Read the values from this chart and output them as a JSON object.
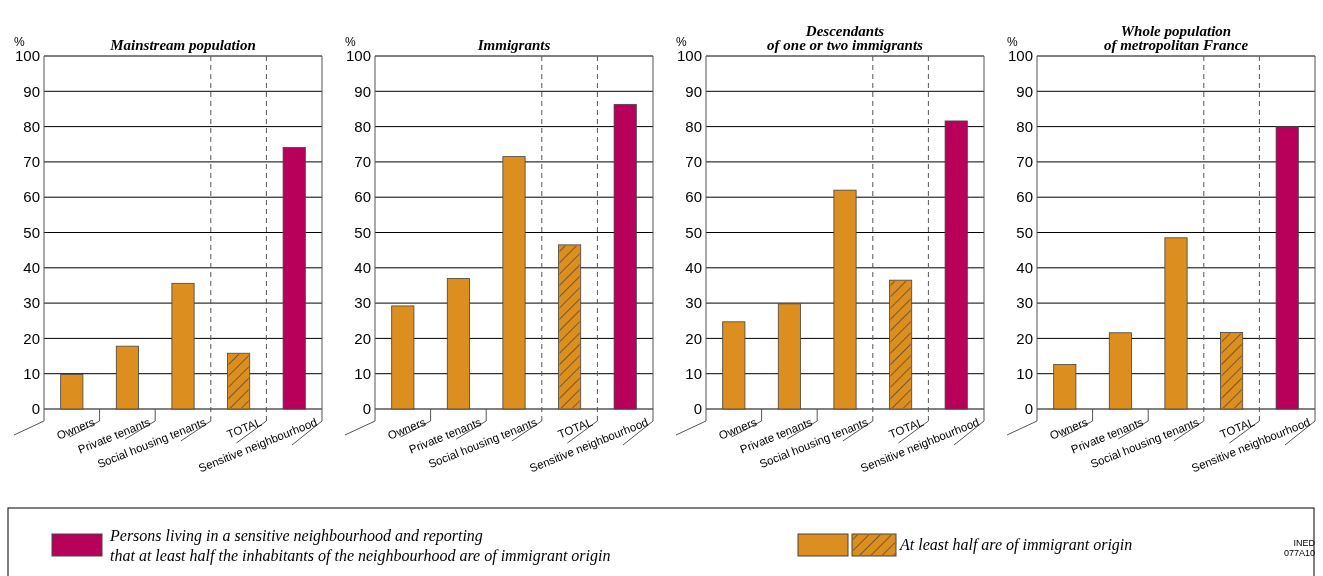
{
  "chart_data": [
    {
      "type": "bar",
      "title": "Mainstream population",
      "ylabel": "%",
      "categories": [
        "Owners",
        "Private tenants",
        "Social housing tenants",
        "TOTAL",
        "Sensitive neighbourhood"
      ],
      "series": [
        {
          "name": "At least half are of immigrant origin",
          "color": "#dc8e1e",
          "values": [
            9.8,
            17.8,
            35.6,
            15.8,
            null
          ]
        },
        {
          "name": "Persons living in a sensitive neighbourhood and reporting\nthat at least half the inhabitants of the neighbourhood are of immigrant origin",
          "color": "#b8005a",
          "values": [
            null,
            null,
            null,
            null,
            74.1
          ]
        }
      ],
      "ylim": [
        0,
        100
      ],
      "yticks": [
        0,
        10,
        20,
        30,
        40,
        50,
        60,
        70,
        80,
        90,
        100
      ],
      "grid": true,
      "legend": "bottom"
    },
    {
      "type": "bar",
      "title": "Immigrants",
      "ylabel": "%",
      "categories": [
        "Owners",
        "Private tenants",
        "Social housing tenants",
        "TOTAL",
        "Sensitive neighbourhood"
      ],
      "series": [
        {
          "color": "#dc8e1e",
          "values": [
            29.2,
            37,
            71.5,
            46.5,
            null
          ]
        },
        {
          "color": "#b8005a",
          "values": [
            null,
            null,
            null,
            null,
            86.3
          ]
        }
      ],
      "ylim": [
        0,
        100
      ],
      "yticks": [
        0,
        10,
        20,
        30,
        40,
        50,
        60,
        70,
        80,
        90,
        100
      ],
      "grid": true
    },
    {
      "type": "bar",
      "title": "Descendants\nof one or two immigrants",
      "ylabel": "%",
      "categories": [
        "Owners",
        "Private tenants",
        "Social housing tenants",
        "TOTAL",
        "Sensitive neighbourhood"
      ],
      "series": [
        {
          "color": "#dc8e1e",
          "values": [
            24.7,
            29.8,
            62,
            36.5,
            null
          ]
        },
        {
          "color": "#b8005a",
          "values": [
            null,
            null,
            null,
            null,
            81.6
          ]
        }
      ],
      "ylim": [
        0,
        100
      ],
      "yticks": [
        0,
        10,
        20,
        30,
        40,
        50,
        60,
        70,
        80,
        90,
        100
      ],
      "grid": true
    },
    {
      "type": "bar",
      "title": "Whole population\nof metropolitan France",
      "ylabel": "%",
      "categories": [
        "Owners",
        "Private tenants",
        "Social housing tenants",
        "TOTAL",
        "Sensitive neighbourhood"
      ],
      "series": [
        {
          "color": "#dc8e1e",
          "values": [
            12.6,
            21.6,
            48.5,
            21.7,
            null
          ]
        },
        {
          "color": "#b8005a",
          "values": [
            null,
            null,
            null,
            null,
            80
          ]
        }
      ],
      "ylim": [
        0,
        100
      ],
      "yticks": [
        0,
        10,
        20,
        30,
        40,
        50,
        60,
        70,
        80,
        90,
        100
      ],
      "grid": true,
      "annotations": [
        "INED\n077A10"
      ]
    }
  ]
}
